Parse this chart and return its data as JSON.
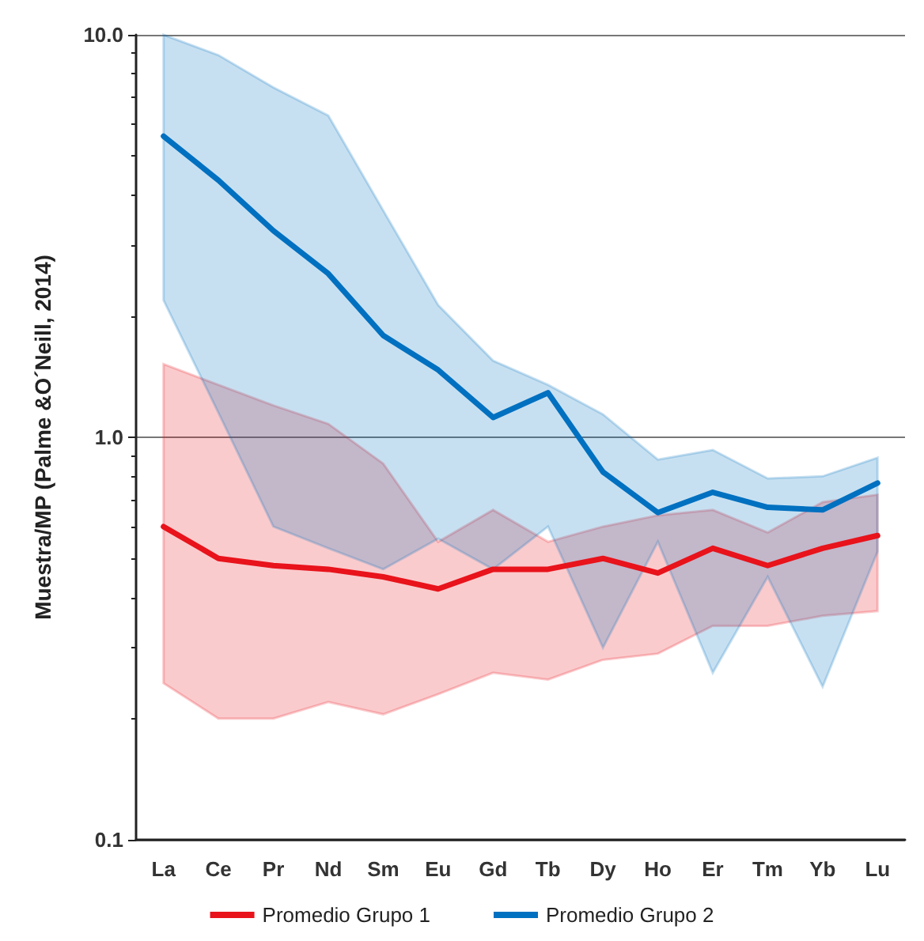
{
  "chart_data": {
    "type": "line",
    "ylabel": "Muestra/MP (Palme &O´Neill, 2014)",
    "categories": [
      "La",
      "Ce",
      "Pr",
      "Nd",
      "Sm",
      "Eu",
      "Gd",
      "Tb",
      "Dy",
      "Ho",
      "Er",
      "Tm",
      "Yb",
      "Lu"
    ],
    "series": [
      {
        "name": "Promedio Grupo 1",
        "color": "#e8131b",
        "values": [
          0.6,
          0.5,
          0.48,
          0.47,
          0.45,
          0.42,
          0.47,
          0.47,
          0.5,
          0.46,
          0.53,
          0.48,
          0.53,
          0.57
        ],
        "lower": [
          0.245,
          0.2,
          0.2,
          0.22,
          0.205,
          0.23,
          0.26,
          0.25,
          0.28,
          0.29,
          0.34,
          0.34,
          0.36,
          0.37
        ],
        "upper": [
          1.52,
          1.35,
          1.2,
          1.08,
          0.86,
          0.55,
          0.66,
          0.55,
          0.6,
          0.64,
          0.66,
          0.58,
          0.69,
          0.72
        ]
      },
      {
        "name": "Promedio Grupo 2",
        "color": "#0070c0",
        "values": [
          5.6,
          4.35,
          3.26,
          2.55,
          1.79,
          1.47,
          1.12,
          1.29,
          0.82,
          0.65,
          0.73,
          0.67,
          0.66,
          0.77
        ],
        "lower": [
          2.19,
          1.15,
          0.6,
          0.53,
          0.47,
          0.56,
          0.47,
          0.6,
          0.3,
          0.55,
          0.26,
          0.45,
          0.24,
          0.52
        ],
        "upper": [
          10,
          8.9,
          7.4,
          6.3,
          3.66,
          2.13,
          1.55,
          1.35,
          1.14,
          0.88,
          0.93,
          0.79,
          0.8,
          0.89
        ]
      }
    ],
    "log": "y",
    "ylim": [
      0.1,
      10
    ],
    "yticks": [
      0.1,
      {
        "value": 1,
        "label": "1.0"
      },
      {
        "value": 10,
        "label": "10.0"
      }
    ],
    "grid": "y",
    "legend": "bottom",
    "line_style": "solid",
    "marker": "none"
  }
}
